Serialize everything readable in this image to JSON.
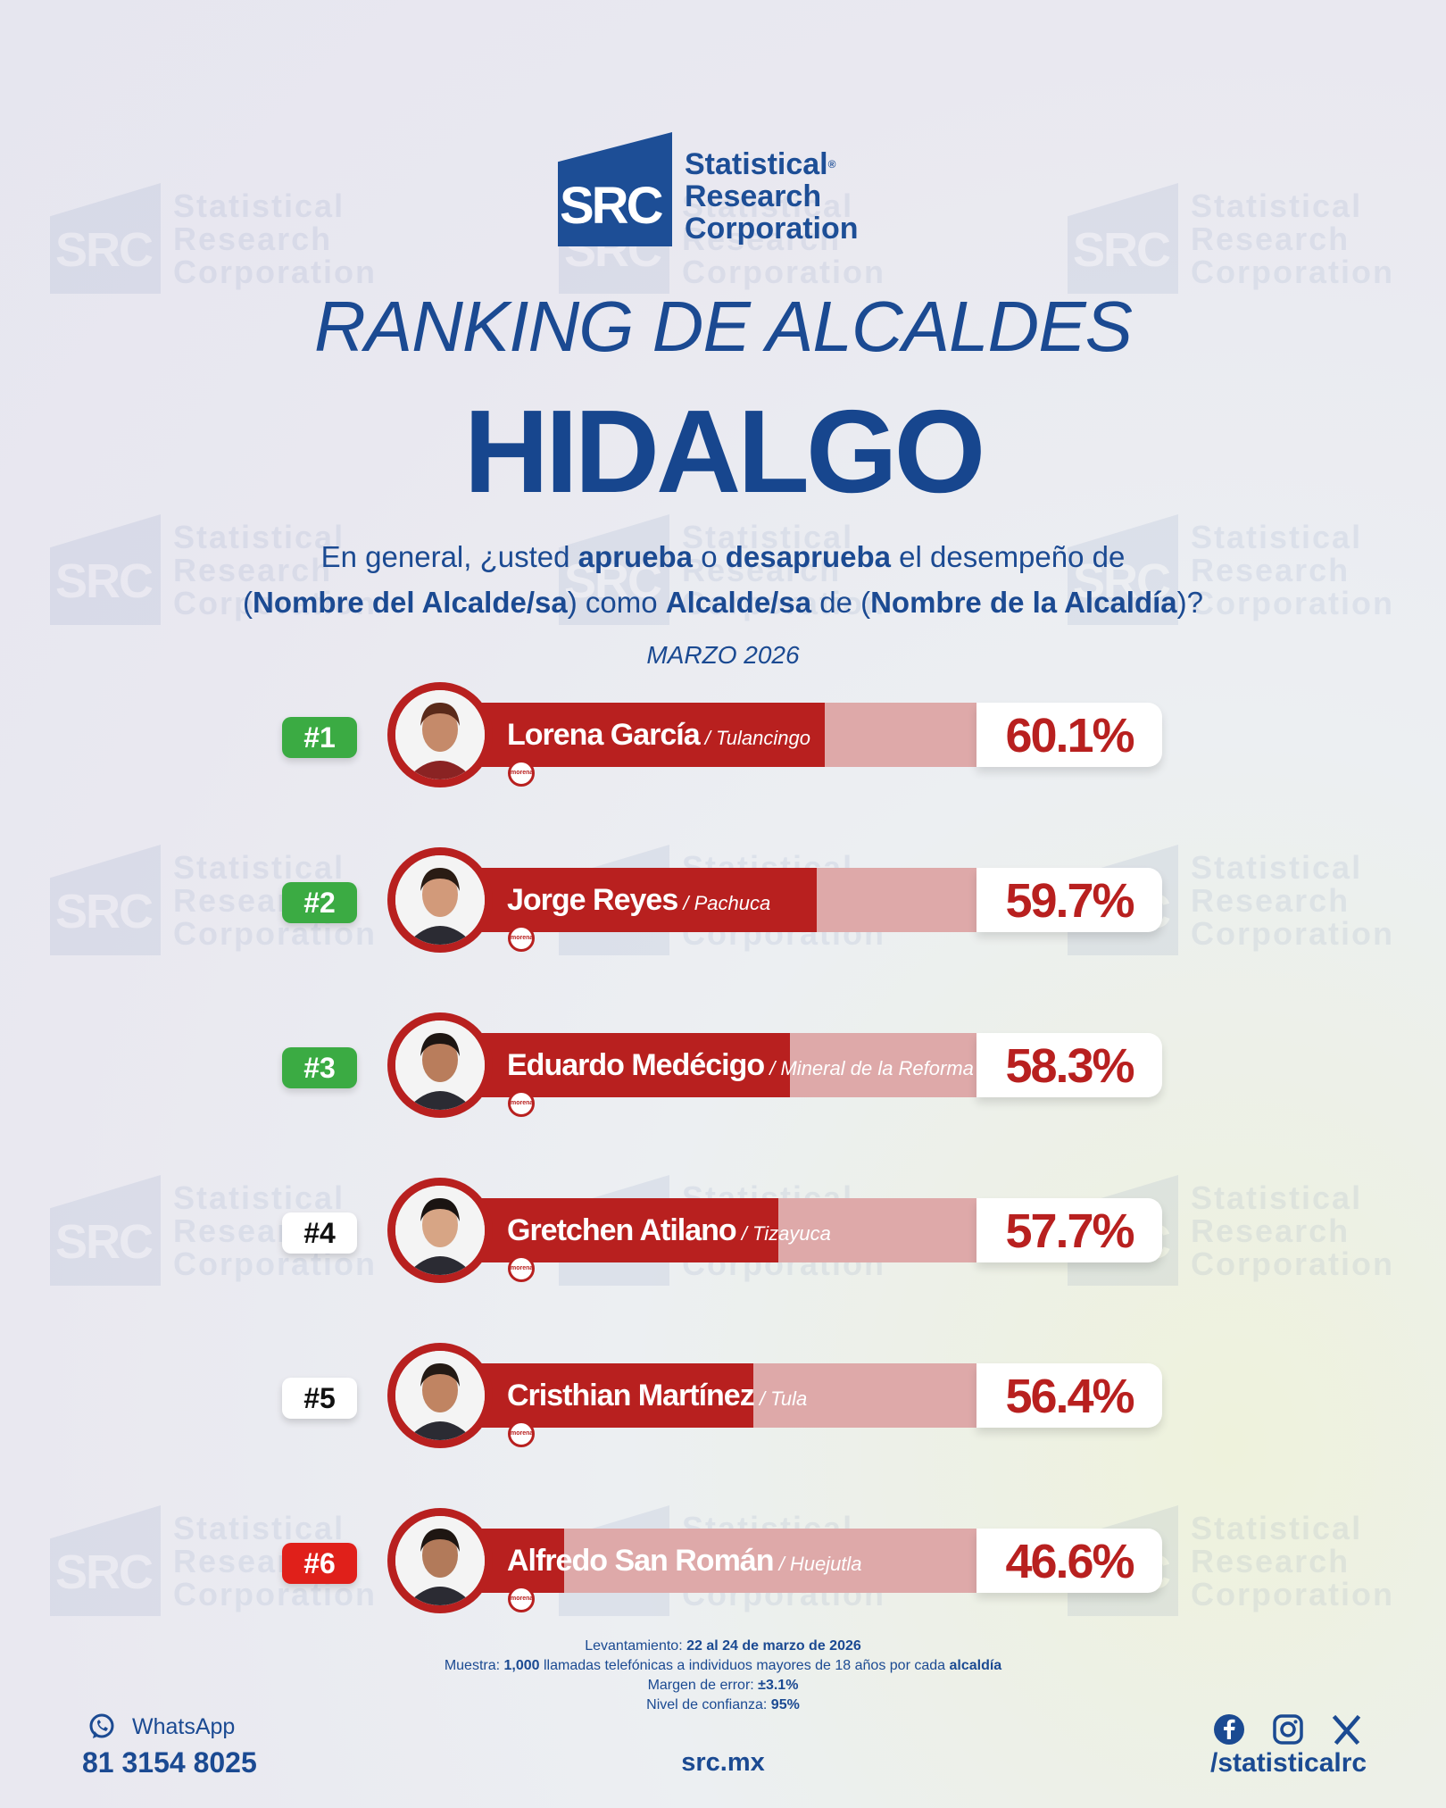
{
  "brand": {
    "mark": "SRC",
    "line1": "Statistical",
    "line2": "Research",
    "line3": "Corporation",
    "registered": "®",
    "color": "#1d4e96"
  },
  "header": {
    "title": "RANKING DE ALCALDES",
    "subtitle": "HIDALGO",
    "question": {
      "p1": "En general, ¿usted ",
      "b1": "aprueba",
      "p2": " o ",
      "b2": "desaprueba",
      "p3": " el desempeño de",
      "p4": "(",
      "b3": "Nombre del Alcalde/sa",
      "p5": ") como ",
      "b4": "Alcalde/sa",
      "p6": " de (",
      "b5": "Nombre de la Alcaldía",
      "p7": ")?"
    },
    "period": "MARZO 2026"
  },
  "chart_data": {
    "type": "bar",
    "orientation": "horizontal",
    "ylim": [
      0,
      100
    ],
    "unit": "%",
    "bar_color": "#b8201f",
    "track_color": "#dea9a9",
    "categories": [
      "Lorena García",
      "Jorge Reyes",
      "Eduardo Medécigo",
      "Gretchen Atilano",
      "Cristhian Martínez",
      "Alfredo San Román"
    ],
    "values": [
      60.1,
      59.7,
      58.3,
      57.7,
      56.4,
      46.6
    ],
    "rows": [
      {
        "rank": "#1",
        "name": "Lorena García",
        "city": "Tulancingo",
        "value": 60.1,
        "label": "60.1%",
        "party": "morena",
        "badge": "green"
      },
      {
        "rank": "#2",
        "name": "Jorge Reyes",
        "city": "Pachuca",
        "value": 59.7,
        "label": "59.7%",
        "party": "morena",
        "badge": "green"
      },
      {
        "rank": "#3",
        "name": "Eduardo Medécigo",
        "city": "Mineral de la Reforma",
        "value": 58.3,
        "label": "58.3%",
        "party": "morena",
        "badge": "green"
      },
      {
        "rank": "#4",
        "name": "Gretchen Atilano",
        "city": "Tizayuca",
        "value": 57.7,
        "label": "57.7%",
        "party": "morena",
        "badge": "white"
      },
      {
        "rank": "#5",
        "name": "Cristhian Martínez",
        "city": "Tula",
        "value": 56.4,
        "label": "56.4%",
        "party": "morena",
        "badge": "white"
      },
      {
        "rank": "#6",
        "name": "Alfredo San Román",
        "city": "Huejutla",
        "value": 46.6,
        "label": "46.6%",
        "party": "morena",
        "badge": "red"
      }
    ]
  },
  "methodology": {
    "l1a": "Levantamiento: ",
    "l1b": "22 al 24 de marzo de 2026",
    "l2a": "Muestra: ",
    "l2b": "1,000",
    "l2c": " llamadas telefónicas a individuos mayores de 18 años por cada ",
    "l2d": "alcaldía",
    "l3a": "Margen de error: ",
    "l3b": "±3.1%",
    "l4a": "Nivel de confianza: ",
    "l4b": "95%"
  },
  "footer": {
    "whatsapp_label": "WhatsApp",
    "phone": "81 3154 8025",
    "site": "src.mx",
    "handle": "/statisticalrc",
    "icons": [
      "whatsapp-icon",
      "facebook-icon",
      "instagram-icon",
      "x-icon"
    ]
  },
  "colors": {
    "green": "#3bab43",
    "red": "#e0201a",
    "white": "#ffffff",
    "navy": "#1b4a92"
  }
}
